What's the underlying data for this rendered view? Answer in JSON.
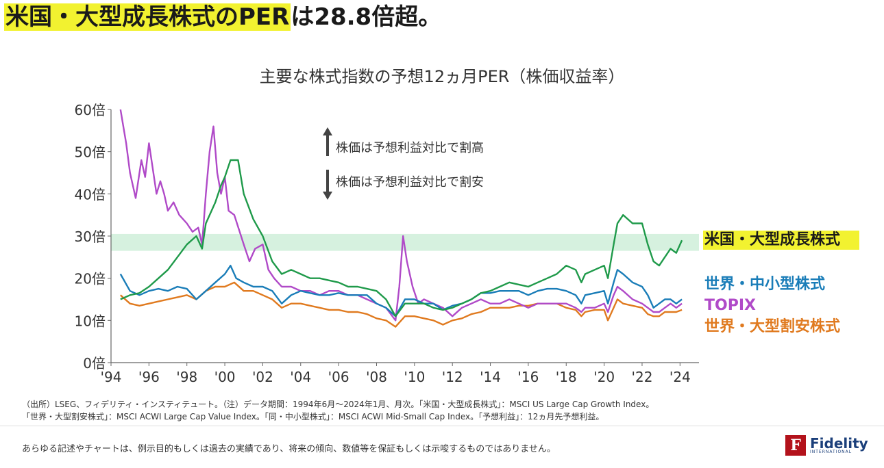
{
  "headline": {
    "highlight": "米国・大型成長株式のPER",
    "rest": "は28.8倍超。"
  },
  "chart_data": {
    "type": "line",
    "title": "主要な株式指数の予想12ヵ月PER（株価収益率）",
    "xlabel": "",
    "ylabel": "",
    "x_ticks": [
      "'94",
      "'96",
      "'98",
      "'00",
      "'02",
      "'04",
      "'06",
      "'08",
      "'10",
      "'12",
      "'14",
      "'16",
      "'18",
      "'20",
      "'22",
      "'24"
    ],
    "y_ticks": [
      "0倍",
      "10倍",
      "20倍",
      "30倍",
      "40倍",
      "50倍",
      "60倍"
    ],
    "ylim": [
      0,
      60
    ],
    "xlim": [
      1994,
      2025
    ],
    "grid": false,
    "highlight_band": [
      26.5,
      30.5
    ],
    "annotations": [
      "株価は予想利益対比で割高",
      "株価は予想利益対比で割安"
    ],
    "series": [
      {
        "name": "米国・大型成長株式",
        "color": "#1f9a4a",
        "label_bg": "#f2f230",
        "points": [
          [
            1994.5,
            15
          ],
          [
            1995,
            16
          ],
          [
            1995.5,
            16.5
          ],
          [
            1996,
            18
          ],
          [
            1996.5,
            20
          ],
          [
            1997,
            22
          ],
          [
            1997.5,
            25
          ],
          [
            1998,
            28
          ],
          [
            1998.5,
            30
          ],
          [
            1998.8,
            27
          ],
          [
            1999,
            33
          ],
          [
            1999.5,
            38
          ],
          [
            1999.8,
            42
          ],
          [
            2000,
            44
          ],
          [
            2000.3,
            48
          ],
          [
            2000.7,
            48
          ],
          [
            2001,
            40
          ],
          [
            2001.5,
            34
          ],
          [
            2002,
            30
          ],
          [
            2002.5,
            24
          ],
          [
            2003,
            21
          ],
          [
            2003.5,
            22
          ],
          [
            2004,
            21
          ],
          [
            2004.5,
            20
          ],
          [
            2005,
            20
          ],
          [
            2005.5,
            19.5
          ],
          [
            2006,
            19
          ],
          [
            2006.5,
            18
          ],
          [
            2007,
            18
          ],
          [
            2007.5,
            17.5
          ],
          [
            2008,
            17
          ],
          [
            2008.5,
            15
          ],
          [
            2009,
            11
          ],
          [
            2009.5,
            14
          ],
          [
            2010,
            14
          ],
          [
            2010.5,
            14
          ],
          [
            2011,
            13
          ],
          [
            2011.5,
            12.5
          ],
          [
            2012,
            13
          ],
          [
            2012.5,
            14
          ],
          [
            2013,
            15
          ],
          [
            2013.5,
            16.5
          ],
          [
            2014,
            17
          ],
          [
            2014.5,
            18
          ],
          [
            2015,
            19
          ],
          [
            2015.5,
            18.5
          ],
          [
            2016,
            18
          ],
          [
            2016.5,
            19
          ],
          [
            2017,
            20
          ],
          [
            2017.5,
            21
          ],
          [
            2018,
            23
          ],
          [
            2018.5,
            22
          ],
          [
            2018.8,
            19
          ],
          [
            2019,
            21
          ],
          [
            2019.5,
            22
          ],
          [
            2020,
            23
          ],
          [
            2020.2,
            20
          ],
          [
            2020.5,
            28
          ],
          [
            2020.7,
            33
          ],
          [
            2021,
            35
          ],
          [
            2021.5,
            33
          ],
          [
            2022,
            33
          ],
          [
            2022.3,
            28
          ],
          [
            2022.6,
            24
          ],
          [
            2022.9,
            23
          ],
          [
            2023.2,
            25
          ],
          [
            2023.5,
            27
          ],
          [
            2023.8,
            26
          ],
          [
            2024.1,
            29
          ]
        ]
      },
      {
        "name": "世界・中小型株式",
        "color": "#1a7db8",
        "label_bg": "",
        "points": [
          [
            1994.5,
            21
          ],
          [
            1995,
            17
          ],
          [
            1995.5,
            16
          ],
          [
            1996,
            17
          ],
          [
            1996.5,
            17.5
          ],
          [
            1997,
            17
          ],
          [
            1997.5,
            18
          ],
          [
            1998,
            17.5
          ],
          [
            1998.5,
            15
          ],
          [
            1999,
            17
          ],
          [
            1999.5,
            19
          ],
          [
            2000,
            21
          ],
          [
            2000.3,
            23
          ],
          [
            2000.6,
            20
          ],
          [
            2001,
            19
          ],
          [
            2001.5,
            18
          ],
          [
            2002,
            18
          ],
          [
            2002.5,
            17
          ],
          [
            2003,
            14
          ],
          [
            2003.5,
            16
          ],
          [
            2004,
            17
          ],
          [
            2004.5,
            16.5
          ],
          [
            2005,
            16
          ],
          [
            2005.5,
            16
          ],
          [
            2006,
            16.5
          ],
          [
            2006.5,
            16
          ],
          [
            2007,
            16
          ],
          [
            2007.5,
            16
          ],
          [
            2008,
            14
          ],
          [
            2008.5,
            13
          ],
          [
            2009,
            11
          ],
          [
            2009.5,
            15
          ],
          [
            2010,
            15
          ],
          [
            2010.5,
            14
          ],
          [
            2011,
            14
          ],
          [
            2011.5,
            12.5
          ],
          [
            2012,
            13.5
          ],
          [
            2012.5,
            14
          ],
          [
            2013,
            15
          ],
          [
            2013.5,
            16.5
          ],
          [
            2014,
            16.5
          ],
          [
            2014.5,
            17
          ],
          [
            2015,
            17
          ],
          [
            2015.5,
            17
          ],
          [
            2016,
            16
          ],
          [
            2016.5,
            17
          ],
          [
            2017,
            17.5
          ],
          [
            2017.5,
            17.5
          ],
          [
            2018,
            17
          ],
          [
            2018.5,
            16
          ],
          [
            2018.8,
            14
          ],
          [
            2019,
            16
          ],
          [
            2019.5,
            16.5
          ],
          [
            2020,
            17
          ],
          [
            2020.2,
            14
          ],
          [
            2020.5,
            19
          ],
          [
            2020.7,
            22
          ],
          [
            2021,
            21
          ],
          [
            2021.5,
            19
          ],
          [
            2022,
            18
          ],
          [
            2022.3,
            16
          ],
          [
            2022.6,
            13
          ],
          [
            2022.9,
            14
          ],
          [
            2023.2,
            15
          ],
          [
            2023.5,
            15
          ],
          [
            2023.8,
            14
          ],
          [
            2024.1,
            15
          ]
        ]
      },
      {
        "name": "TOPIX",
        "color": "#b04ac8",
        "label_bg": "",
        "points": [
          [
            1994.5,
            60
          ],
          [
            1994.8,
            52
          ],
          [
            1995,
            45
          ],
          [
            1995.3,
            39
          ],
          [
            1995.6,
            48
          ],
          [
            1995.8,
            44
          ],
          [
            1996,
            52
          ],
          [
            1996.2,
            46
          ],
          [
            1996.4,
            40
          ],
          [
            1996.6,
            43
          ],
          [
            1996.8,
            40
          ],
          [
            1997,
            36
          ],
          [
            1997.3,
            38
          ],
          [
            1997.6,
            35
          ],
          [
            1998,
            33
          ],
          [
            1998.3,
            31
          ],
          [
            1998.6,
            32
          ],
          [
            1998.8,
            28
          ],
          [
            1999,
            40
          ],
          [
            1999.2,
            50
          ],
          [
            1999.4,
            56
          ],
          [
            1999.6,
            45
          ],
          [
            1999.8,
            40
          ],
          [
            2000,
            44
          ],
          [
            2000.2,
            36
          ],
          [
            2000.5,
            35
          ],
          [
            2001,
            28
          ],
          [
            2001.3,
            24
          ],
          [
            2001.6,
            27
          ],
          [
            2002,
            28
          ],
          [
            2002.3,
            22
          ],
          [
            2002.6,
            20
          ],
          [
            2003,
            18
          ],
          [
            2003.5,
            18
          ],
          [
            2004,
            17
          ],
          [
            2004.5,
            17
          ],
          [
            2005,
            16
          ],
          [
            2005.5,
            17
          ],
          [
            2006,
            17
          ],
          [
            2006.5,
            16
          ],
          [
            2007,
            16
          ],
          [
            2007.5,
            15
          ],
          [
            2008,
            14
          ],
          [
            2008.5,
            13
          ],
          [
            2009,
            10
          ],
          [
            2009.2,
            18
          ],
          [
            2009.4,
            30
          ],
          [
            2009.6,
            24
          ],
          [
            2009.9,
            18
          ],
          [
            2010.2,
            14
          ],
          [
            2010.5,
            15
          ],
          [
            2011,
            14
          ],
          [
            2011.5,
            13
          ],
          [
            2012,
            11
          ],
          [
            2012.5,
            13
          ],
          [
            2013,
            14
          ],
          [
            2013.5,
            15
          ],
          [
            2014,
            14
          ],
          [
            2014.5,
            14
          ],
          [
            2015,
            15
          ],
          [
            2015.5,
            14
          ],
          [
            2016,
            13
          ],
          [
            2016.5,
            14
          ],
          [
            2017,
            14
          ],
          [
            2017.5,
            14
          ],
          [
            2018,
            14
          ],
          [
            2018.5,
            13
          ],
          [
            2018.8,
            12
          ],
          [
            2019,
            13
          ],
          [
            2019.5,
            13
          ],
          [
            2020,
            14
          ],
          [
            2020.2,
            12
          ],
          [
            2020.5,
            16
          ],
          [
            2020.7,
            18
          ],
          [
            2021,
            17
          ],
          [
            2021.5,
            15
          ],
          [
            2022,
            14
          ],
          [
            2022.3,
            13
          ],
          [
            2022.6,
            12
          ],
          [
            2022.9,
            12
          ],
          [
            2023.2,
            13
          ],
          [
            2023.5,
            14
          ],
          [
            2023.8,
            13
          ],
          [
            2024.1,
            14
          ]
        ]
      },
      {
        "name": "世界・大型割安株式",
        "color": "#e07a1f",
        "label_bg": "",
        "points": [
          [
            1994.5,
            16
          ],
          [
            1995,
            14
          ],
          [
            1995.5,
            13.5
          ],
          [
            1996,
            14
          ],
          [
            1996.5,
            14.5
          ],
          [
            1997,
            15
          ],
          [
            1997.5,
            15.5
          ],
          [
            1998,
            16
          ],
          [
            1998.5,
            15
          ],
          [
            1999,
            17
          ],
          [
            1999.5,
            18
          ],
          [
            2000,
            18
          ],
          [
            2000.5,
            19
          ],
          [
            2001,
            17
          ],
          [
            2001.5,
            17
          ],
          [
            2002,
            16
          ],
          [
            2002.5,
            15
          ],
          [
            2003,
            13
          ],
          [
            2003.5,
            14
          ],
          [
            2004,
            14
          ],
          [
            2004.5,
            13.5
          ],
          [
            2005,
            13
          ],
          [
            2005.5,
            12.5
          ],
          [
            2006,
            12.5
          ],
          [
            2006.5,
            12
          ],
          [
            2007,
            12
          ],
          [
            2007.5,
            11.5
          ],
          [
            2008,
            10.5
          ],
          [
            2008.5,
            10
          ],
          [
            2009,
            8.5
          ],
          [
            2009.5,
            11
          ],
          [
            2010,
            11
          ],
          [
            2010.5,
            10.5
          ],
          [
            2011,
            10
          ],
          [
            2011.5,
            9
          ],
          [
            2012,
            10
          ],
          [
            2012.5,
            10.5
          ],
          [
            2013,
            11.5
          ],
          [
            2013.5,
            12
          ],
          [
            2014,
            13
          ],
          [
            2014.5,
            13
          ],
          [
            2015,
            13
          ],
          [
            2015.5,
            13.5
          ],
          [
            2016,
            13.5
          ],
          [
            2016.5,
            14
          ],
          [
            2017,
            14
          ],
          [
            2017.5,
            14
          ],
          [
            2018,
            13
          ],
          [
            2018.5,
            12.5
          ],
          [
            2018.8,
            11
          ],
          [
            2019,
            12
          ],
          [
            2019.5,
            12.5
          ],
          [
            2020,
            12.5
          ],
          [
            2020.2,
            10
          ],
          [
            2020.5,
            13
          ],
          [
            2020.7,
            15
          ],
          [
            2021,
            14
          ],
          [
            2021.5,
            13.5
          ],
          [
            2022,
            13
          ],
          [
            2022.3,
            11.5
          ],
          [
            2022.6,
            11
          ],
          [
            2022.9,
            11
          ],
          [
            2023.2,
            12
          ],
          [
            2023.5,
            12
          ],
          [
            2023.8,
            12
          ],
          [
            2024.1,
            12.5
          ]
        ]
      }
    ]
  },
  "notes": [
    "（出所）LSEG、フィデリティ・インスティテュート。（注）データ期間：1994年6月～2024年1月、月次。「米国・大型成長株式」：MSCI US Large Cap Growth Index。",
    "「世界・大型割安株式」：MSCI ACWI Large Cap Value Index。「同・中小型株式」：MSCI ACWI Mid-Small Cap Index。「予想利益」：12ヵ月先予想利益。"
  ],
  "disclaimer": "あらゆる記述やチャートは、例示目的もしくは過去の実績であり、将来の傾向、数値等を保証もしくは示唆するものではありません。",
  "logo": {
    "name": "Fidelity",
    "sub": "INTERNATIONAL",
    "mark": "F"
  }
}
